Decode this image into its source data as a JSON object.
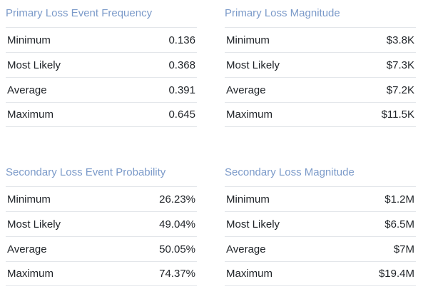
{
  "panels": [
    {
      "title": "Primary Loss Event Frequency",
      "rows": [
        {
          "label": "Minimum",
          "value": "0.136"
        },
        {
          "label": "Most Likely",
          "value": "0.368"
        },
        {
          "label": "Average",
          "value": "0.391"
        },
        {
          "label": "Maximum",
          "value": "0.645"
        }
      ]
    },
    {
      "title": "Primary Loss Magnitude",
      "rows": [
        {
          "label": "Minimum",
          "value": "$3.8K"
        },
        {
          "label": "Most Likely",
          "value": "$7.3K"
        },
        {
          "label": "Average",
          "value": "$7.2K"
        },
        {
          "label": "Maximum",
          "value": "$11.5K"
        }
      ]
    },
    {
      "title": "Secondary Loss Event Probability",
      "rows": [
        {
          "label": "Minimum",
          "value": "26.23%"
        },
        {
          "label": "Most Likely",
          "value": "49.04%"
        },
        {
          "label": "Average",
          "value": "50.05%"
        },
        {
          "label": "Maximum",
          "value": "74.37%"
        }
      ]
    },
    {
      "title": "Secondary Loss Magnitude",
      "rows": [
        {
          "label": "Minimum",
          "value": "$1.2M"
        },
        {
          "label": "Most Likely",
          "value": "$6.5M"
        },
        {
          "label": "Average",
          "value": "$7M"
        },
        {
          "label": "Maximum",
          "value": "$19.4M"
        }
      ]
    }
  ]
}
